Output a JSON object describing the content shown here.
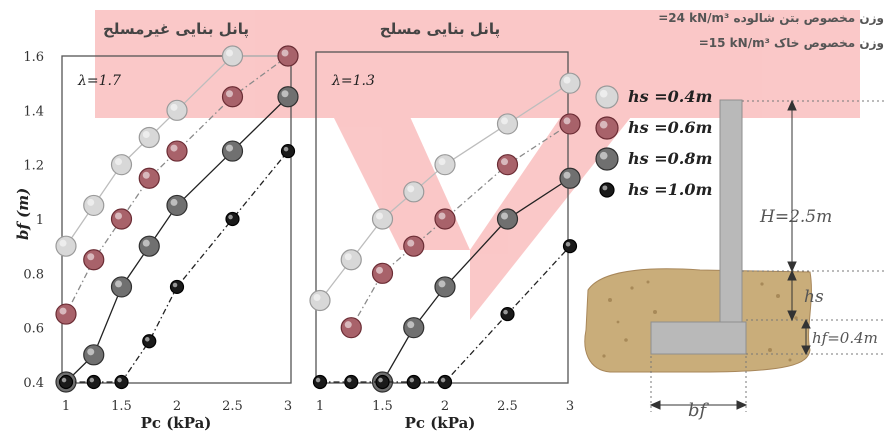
{
  "chart_data": [
    {
      "type": "scatter",
      "title": "پانل بنایی غیرمسلح",
      "lambda_label": "λ=1.7",
      "xlabel": "Pc (kPa)",
      "ylabel": "bf (m)",
      "xlim": [
        1,
        3
      ],
      "ylim": [
        0.4,
        1.6
      ],
      "xticks": [
        "1",
        "1.5",
        "2",
        "2.5",
        "3"
      ],
      "yticks": [
        "0.4",
        "0.6",
        "0.8",
        "1",
        "1.2",
        "1.4",
        "1.6"
      ],
      "series": [
        {
          "name": "hs =0.4m",
          "line": "solid",
          "x": [
            1.0,
            1.25,
            1.5,
            1.75,
            2.0,
            2.5,
            3.0
          ],
          "y": [
            0.9,
            1.05,
            1.2,
            1.3,
            1.4,
            1.6,
            1.6
          ]
        },
        {
          "name": "hs =0.6m",
          "line": "dashdot",
          "x": [
            1.0,
            1.25,
            1.5,
            1.75,
            2.0,
            2.5,
            3.0
          ],
          "y": [
            0.65,
            0.85,
            1.0,
            1.15,
            1.25,
            1.45,
            1.6
          ]
        },
        {
          "name": "hs =0.8m",
          "line": "solid",
          "x": [
            1.0,
            1.25,
            1.5,
            1.75,
            2.0,
            2.5,
            3.0
          ],
          "y": [
            0.4,
            0.5,
            0.75,
            0.9,
            1.05,
            1.25,
            1.45
          ]
        },
        {
          "name": "hs =1.0m",
          "line": "dashdot",
          "x": [
            1.0,
            1.25,
            1.5,
            1.75,
            2.0,
            2.5,
            3.0
          ],
          "y": [
            0.4,
            0.4,
            0.4,
            0.55,
            0.75,
            1.0,
            1.25
          ]
        }
      ]
    },
    {
      "type": "scatter",
      "title": "پانل بنایی مسلح",
      "lambda_label": "λ=1.3",
      "xlabel": "Pc (kPa)",
      "xlim": [
        1,
        3
      ],
      "ylim": [
        0.4,
        1.6
      ],
      "xticks": [
        "1",
        "1.5",
        "2",
        "2.5",
        "3"
      ],
      "series": [
        {
          "name": "hs =0.4m",
          "line": "solid",
          "x": [
            1.0,
            1.25,
            1.5,
            1.75,
            2.0,
            2.5,
            3.0
          ],
          "y": [
            0.7,
            0.85,
            1.0,
            1.1,
            1.2,
            1.35,
            1.5
          ]
        },
        {
          "name": "hs =0.6m",
          "line": "dashdot",
          "x": [
            1.25,
            1.5,
            1.75,
            2.0,
            2.5,
            3.0
          ],
          "y": [
            0.6,
            0.8,
            0.9,
            1.0,
            1.2,
            1.35
          ]
        },
        {
          "name": "hs =0.8m",
          "line": "solid",
          "x": [
            1.5,
            1.75,
            2.0,
            2.5,
            3.0
          ],
          "y": [
            0.4,
            0.6,
            0.75,
            1.0,
            1.15
          ]
        },
        {
          "name": "hs =1.0m",
          "line": "dashdot",
          "x": [
            1.0,
            1.25,
            1.5,
            1.75,
            2.0,
            2.5,
            3.0
          ],
          "y": [
            0.4,
            0.4,
            0.4,
            0.4,
            0.4,
            0.65,
            0.9
          ]
        }
      ]
    }
  ],
  "legend": [
    {
      "label": "hs =0.4m",
      "fill": "#d8d8d8",
      "stroke": "#9a9a9a"
    },
    {
      "label": "hs =0.6m",
      "fill": "#a8626a",
      "stroke": "#6b2c34"
    },
    {
      "label": "hs =0.8m",
      "fill": "#707070",
      "stroke": "#303030"
    },
    {
      "label": "hs =1.0m",
      "fill": "#1a1a1a",
      "stroke": "#000000"
    }
  ],
  "material": {
    "concrete_weight": "=24 kN/m³ وزن مخصوص بتن شالوده",
    "soil_weight": "=15 kN/m³ وزن مخصوص خاک"
  },
  "dimensions": {
    "H": "H=2.5m",
    "hs": "hs",
    "hf": "hf=0.4m",
    "bf": "bf"
  },
  "colors": {
    "watermark": "#ee3b3b",
    "frame": "#555555",
    "soil": "#c9ad7a",
    "concrete": "#b9b9b9"
  }
}
